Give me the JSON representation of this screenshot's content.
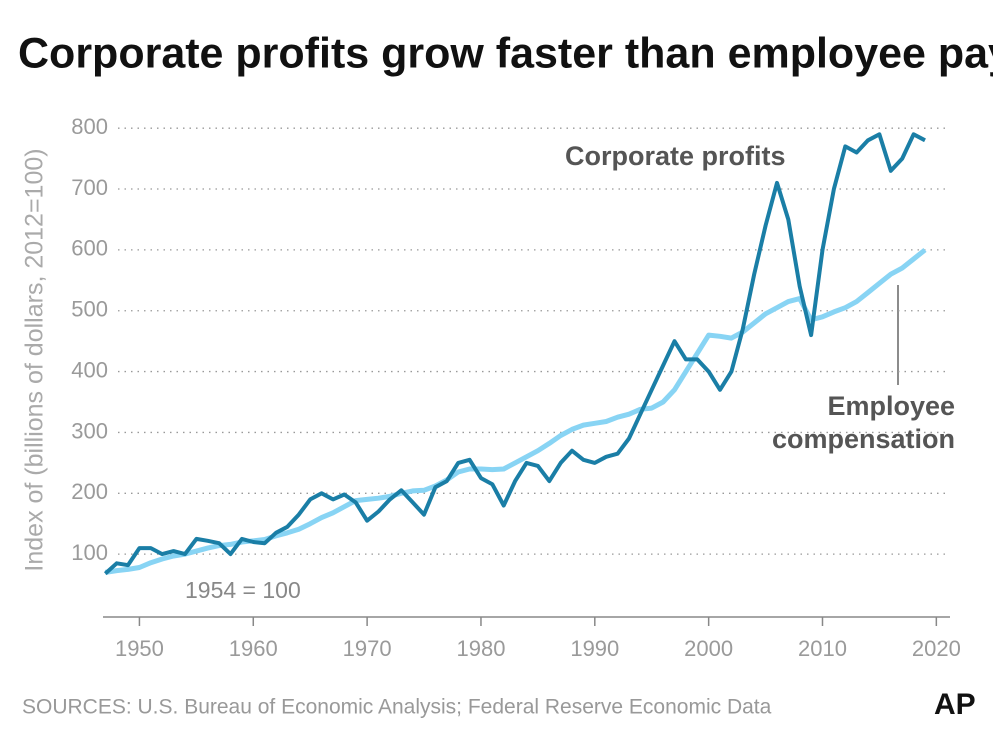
{
  "chart_data": {
    "type": "line",
    "title": "Corporate profits grow faster than employee pay",
    "y_label": "Index of (billions of dollars, 2012=100)",
    "annotation": "1954 = 100",
    "source": "SOURCES: U.S. Bureau of Economic Analysis; Federal Reserve Economic Data",
    "logo": "AP",
    "xlim": [
      1946.8,
      2021.2
    ],
    "ylim": [
      0,
      820
    ],
    "xticks": [
      1950,
      1960,
      1970,
      1980,
      1990,
      2000,
      2010,
      2020
    ],
    "yticks": [
      100,
      200,
      300,
      400,
      500,
      600,
      700,
      800
    ],
    "grid": true,
    "x": [
      1947,
      1948,
      1949,
      1950,
      1951,
      1952,
      1953,
      1954,
      1955,
      1956,
      1957,
      1958,
      1959,
      1960,
      1961,
      1962,
      1963,
      1964,
      1965,
      1966,
      1967,
      1968,
      1969,
      1970,
      1971,
      1972,
      1973,
      1974,
      1975,
      1976,
      1977,
      1978,
      1979,
      1980,
      1981,
      1982,
      1983,
      1984,
      1985,
      1986,
      1987,
      1988,
      1989,
      1990,
      1991,
      1992,
      1993,
      1994,
      1995,
      1996,
      1997,
      1998,
      1999,
      2000,
      2001,
      2002,
      2003,
      2004,
      2005,
      2006,
      2007,
      2008,
      2009,
      2010,
      2011,
      2012,
      2013,
      2014,
      2015,
      2016,
      2017,
      2018,
      2019
    ],
    "series": [
      {
        "name": "Employee compensation",
        "color": "#88d4f4",
        "values": [
          70,
          73,
          75,
          78,
          86,
          92,
          97,
          100,
          105,
          110,
          114,
          116,
          120,
          122,
          124,
          130,
          135,
          141,
          150,
          160,
          168,
          178,
          188,
          190,
          192,
          195,
          200,
          204,
          205,
          212,
          222,
          235,
          240,
          240,
          239,
          240,
          250,
          260,
          270,
          282,
          295,
          305,
          312,
          315,
          318,
          325,
          330,
          338,
          340,
          350,
          370,
          400,
          430,
          460,
          458,
          455,
          465,
          480,
          495,
          505,
          515,
          520,
          485,
          490,
          498,
          505,
          515,
          530,
          545,
          560,
          570,
          585,
          600
        ]
      },
      {
        "name": "Corporate profits",
        "color": "#1a7ea6",
        "values": [
          68,
          85,
          82,
          110,
          110,
          100,
          105,
          100,
          125,
          122,
          118,
          100,
          125,
          120,
          118,
          135,
          145,
          165,
          190,
          200,
          190,
          198,
          185,
          155,
          170,
          190,
          205,
          185,
          165,
          210,
          220,
          250,
          255,
          225,
          215,
          180,
          220,
          250,
          245,
          220,
          250,
          270,
          255,
          250,
          260,
          265,
          290,
          330,
          370,
          410,
          450,
          420,
          420,
          400,
          370,
          400,
          470,
          560,
          640,
          710,
          650,
          540,
          460,
          600,
          700,
          770,
          760,
          780,
          790,
          730,
          750,
          790,
          780
        ]
      }
    ]
  }
}
